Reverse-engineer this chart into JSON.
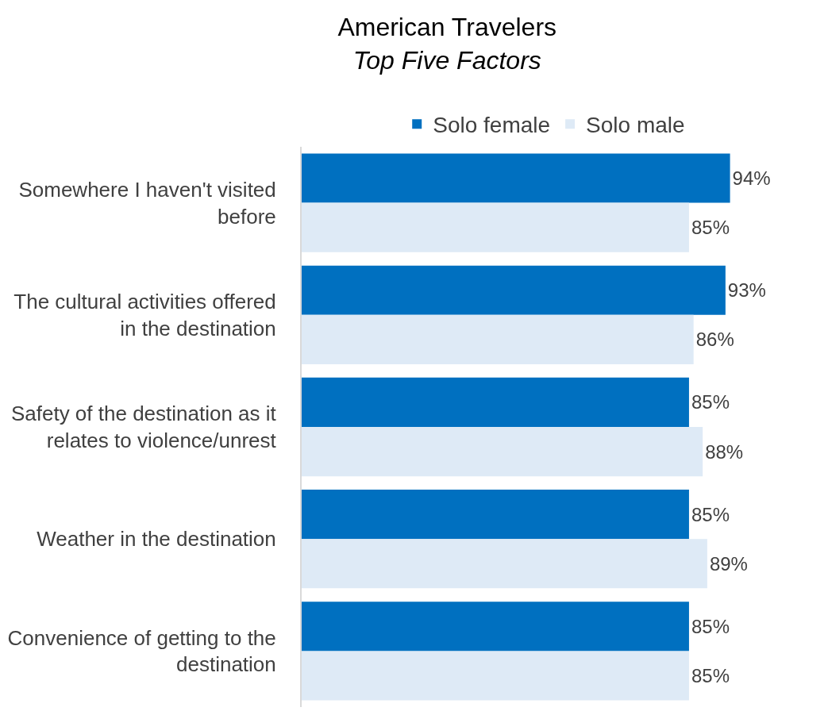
{
  "chart_data": {
    "type": "bar",
    "orientation": "horizontal",
    "title": "American Travelers",
    "subtitle": "Top Five Factors",
    "categories": [
      "Somewhere I haven't visited before",
      "The cultural activities offered in the destination",
      "Safety of the destination as it relates to violence/unrest",
      "Weather in the destination",
      "Convenience of getting to the destination"
    ],
    "series": [
      {
        "name": "Solo female",
        "color": "#0070c0",
        "values": [
          94,
          93,
          85,
          85,
          85
        ],
        "value_labels": [
          "94%",
          "93%",
          "85%",
          "85%",
          "85%"
        ]
      },
      {
        "name": "Solo male",
        "color": "#deeaf6",
        "values": [
          85,
          86,
          88,
          89,
          85
        ],
        "value_labels": [
          "85%",
          "86%",
          "88%",
          "89%",
          "85%"
        ]
      }
    ],
    "tick_labels": "y",
    "legend": "top"
  }
}
